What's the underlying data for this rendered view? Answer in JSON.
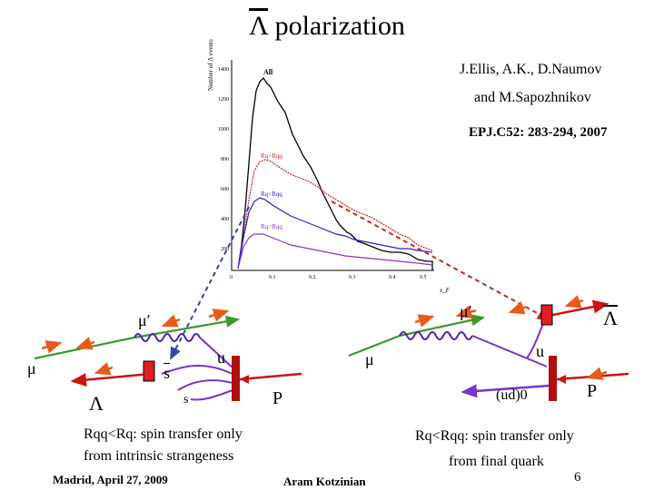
{
  "slide": {
    "title_symbol": "Λ",
    "title_text": " polarization",
    "authors_line1": "J.Ellis, A.K., D.Naumov",
    "authors_line2": "and  M.Sapozhnikov",
    "reference": "EPJ.C52: 283-294, 2007",
    "footer_left": "Madrid, April 27,  2009",
    "footer_center": "Aram Kotzinian",
    "page_number": "6"
  },
  "histogram": {
    "ylabel": "Number of Λ events",
    "y_ticks": [
      "1400",
      "1200",
      "1000",
      "800",
      "600",
      "400",
      "200"
    ],
    "x_ticks": [
      "0",
      "0.1",
      "0.2",
      "0.3",
      "0.4",
      "0.5"
    ],
    "xlabel": "x_F",
    "labels": {
      "all": "All",
      "rq_rqq": "Rq>Rqq",
      "rq_rqq2": "Rq<Rqq",
      "rq_rqq3": "Rq=Rqq"
    }
  },
  "left_diagram": {
    "mu_in": "μ",
    "mu_out": "μ′",
    "quark_u": "u",
    "quark_s_bar": "s",
    "quark_s": "s",
    "lambda": "Λ",
    "proton": "P",
    "caption_line1": "Rqq<Rq: spin transfer only",
    "caption_line2": "from intrinsic strangeness"
  },
  "right_diagram": {
    "mu_in": "μ",
    "mu_out": "μ′",
    "quark_u": "u",
    "diquark": "(ud)0",
    "lambda_bar": "Λ",
    "proton": "P",
    "caption_line1": "Rq<Rqq: spin transfer only",
    "caption_line2": "from final quark"
  },
  "colors": {
    "black_hist": "#000000",
    "red_hist": "#cc2222",
    "blue_hist": "#2222cc",
    "violet_hist": "#8833cc",
    "arrow_orange": "#e85a1a",
    "muon_green": "#3a9a2a",
    "quark_violet": "#7733cc",
    "photon": "#5522aa",
    "proton_red": "#cc1111",
    "dashed_blue": "#3344aa",
    "dashed_red": "#cc2222"
  }
}
